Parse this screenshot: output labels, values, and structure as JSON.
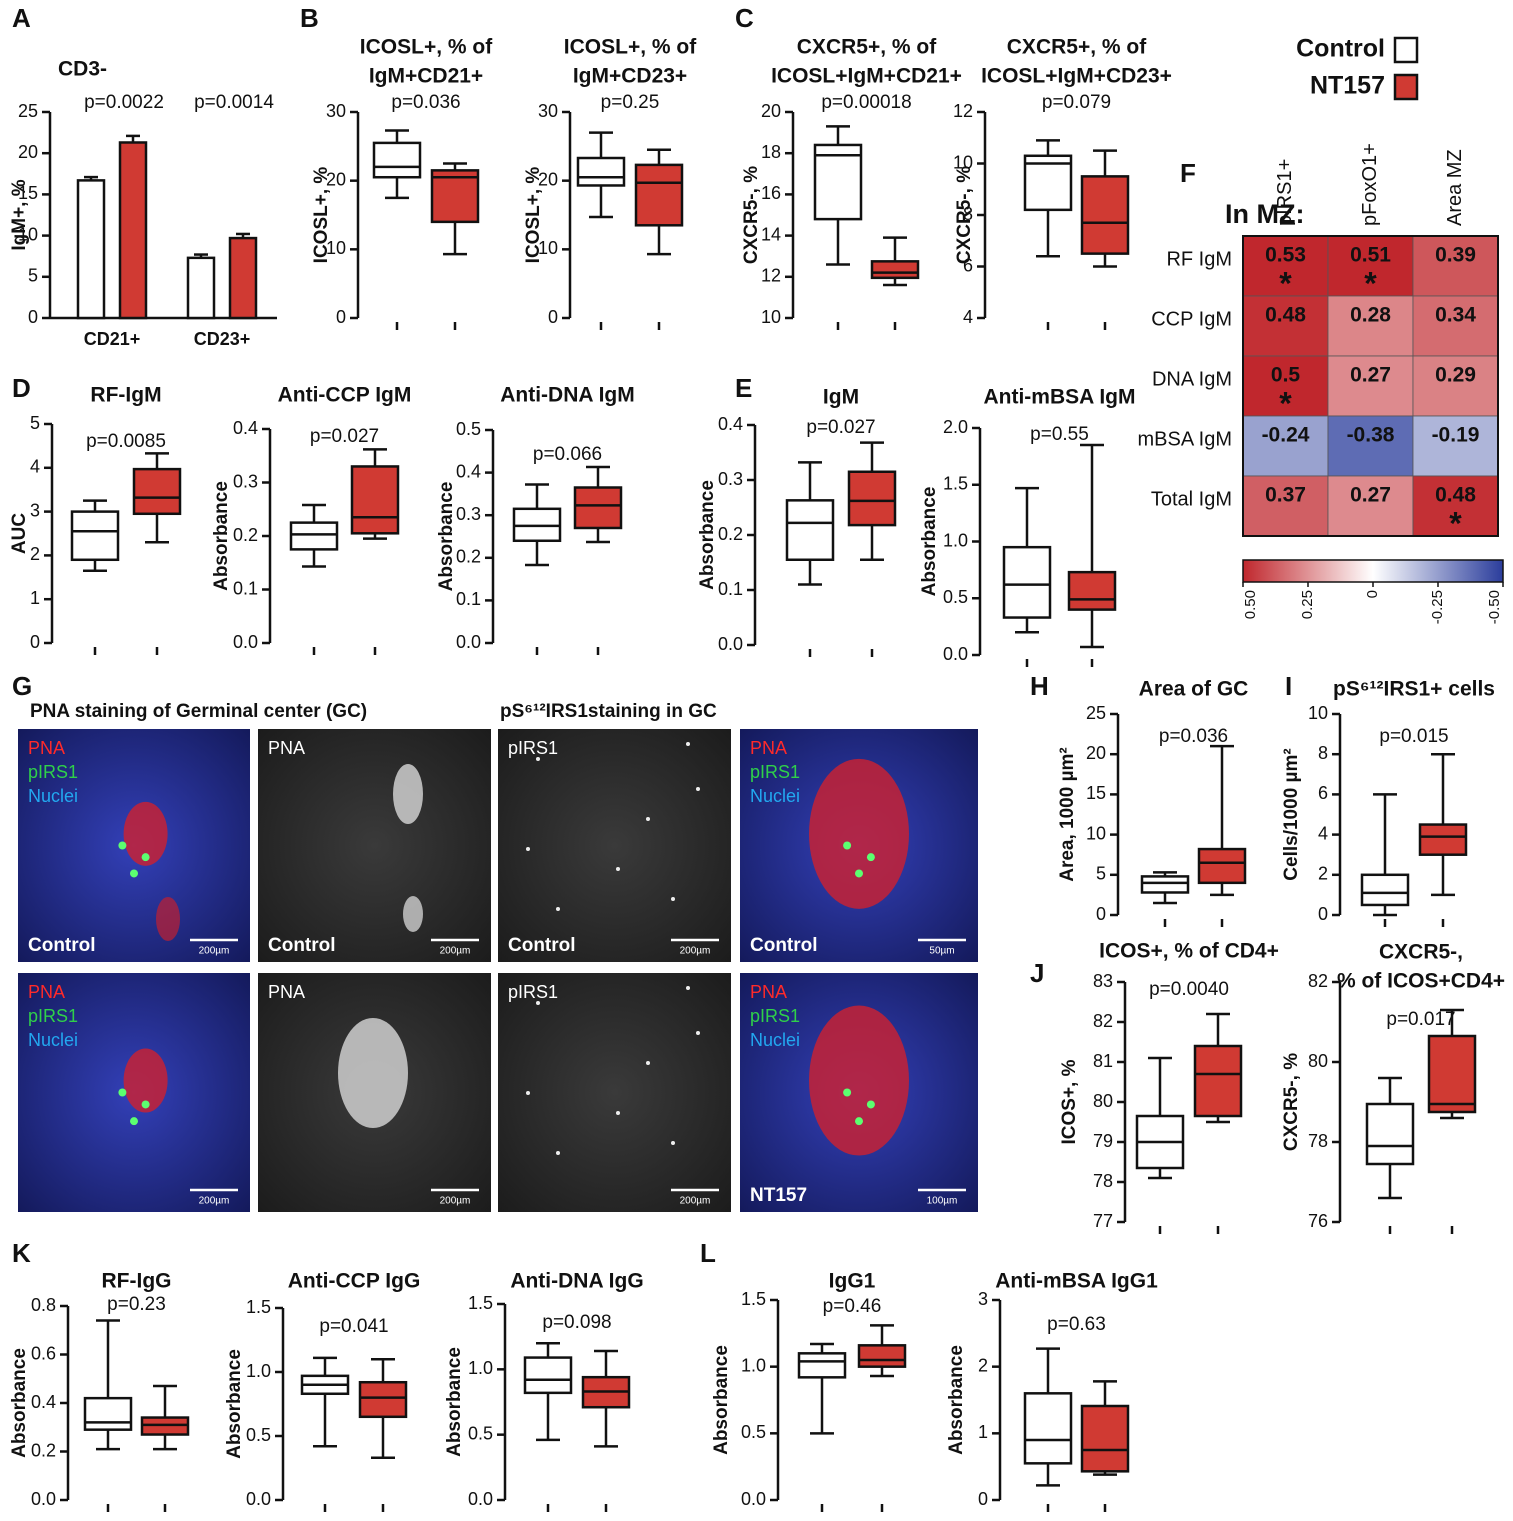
{
  "panel_letters": [
    "A",
    "B",
    "C",
    "D",
    "E",
    "F",
    "G",
    "H",
    "I",
    "J",
    "K",
    "L"
  ],
  "legend": {
    "items": [
      {
        "name": "Control",
        "color": "#ffffff"
      },
      {
        "name": "NT157",
        "color": "#d03a33"
      }
    ]
  },
  "chart_data": [
    {
      "type": "bar",
      "title": [
        "CD3-"
      ],
      "ylabel": "IgM+, %",
      "categories": [
        "CD21+",
        "CD23+"
      ],
      "annotations": [
        "p=0.0022",
        "p=0.0014"
      ],
      "series": [
        {
          "values": [
            16.7,
            7.3
          ],
          "errors": [
            0.4,
            0.4
          ]
        },
        {
          "values": [
            21.3,
            9.7
          ],
          "errors": [
            0.8,
            0.5
          ]
        }
      ],
      "ylim": [
        0,
        25
      ],
      "yticks": [
        0,
        5,
        10,
        15,
        20,
        25
      ]
    },
    {
      "type": "box",
      "title": [
        "ICOSL+, % of",
        "IgM+CD21+"
      ],
      "ylabel": "ICOSL+, %",
      "annotation": "p=0.036",
      "ylim": [
        0,
        30
      ],
      "yticks": [
        0,
        10,
        20,
        30
      ],
      "boxes": [
        [
          17.5,
          20.5,
          22,
          25.5,
          27.3
        ],
        [
          9.3,
          14,
          20.5,
          21.5,
          22.5
        ]
      ]
    },
    {
      "type": "box",
      "title": [
        "ICOSL+, % of",
        "IgM+CD23+"
      ],
      "ylabel": "ICOSL+, %",
      "annotation": "p=0.25",
      "ylim": [
        0,
        30
      ],
      "yticks": [
        0,
        10,
        20,
        30
      ],
      "boxes": [
        [
          14.7,
          19.3,
          20.5,
          23.3,
          27
        ],
        [
          9.3,
          13.5,
          19.7,
          22.3,
          24.5
        ]
      ]
    },
    {
      "type": "box",
      "title": [
        "CXCR5+, % of",
        "ICOSL+IgM+CD21+"
      ],
      "ylabel": "CXCR5-, %",
      "annotation": "p=0.00018",
      "ylim": [
        10,
        20
      ],
      "yticks": [
        10,
        12,
        14,
        16,
        18,
        20
      ],
      "boxes": [
        [
          12.6,
          14.8,
          17.9,
          18.4,
          19.3
        ],
        [
          11.6,
          11.95,
          12.2,
          12.75,
          13.9
        ]
      ]
    },
    {
      "type": "box",
      "title": [
        "CXCR5+, % of",
        "ICOSL+IgM+CD23+"
      ],
      "ylabel": "CXCR5-, %",
      "annotation": "p=0.079",
      "ylim": [
        4,
        12
      ],
      "yticks": [
        4,
        6,
        8,
        10,
        12
      ],
      "boxes": [
        [
          6.4,
          8.2,
          10,
          10.3,
          10.9
        ],
        [
          6,
          6.5,
          7.7,
          9.5,
          10.5
        ]
      ]
    },
    {
      "type": "box",
      "title": [
        "RF-IgM"
      ],
      "ylabel": "AUC",
      "annotation": "p=0.0085",
      "ylim": [
        0,
        5
      ],
      "yticks": [
        0,
        1,
        2,
        3,
        4,
        5
      ],
      "boxes": [
        [
          1.65,
          1.9,
          2.55,
          3.0,
          3.25
        ],
        [
          2.3,
          2.95,
          3.32,
          3.97,
          4.33
        ]
      ]
    },
    {
      "type": "box",
      "title": [
        "Anti-CCP IgM"
      ],
      "ylabel": "Absorbance",
      "annotation": "p=0.027",
      "ylim": [
        0,
        0.4
      ],
      "yticks": [
        {
          "value": 0,
          "label": "0.0"
        },
        0.1,
        0.2,
        0.3,
        0.4
      ],
      "boxes": [
        [
          0.143,
          0.175,
          0.203,
          0.225,
          0.258
        ],
        [
          0.195,
          0.205,
          0.235,
          0.33,
          0.362
        ]
      ]
    },
    {
      "type": "box",
      "title": [
        "Anti-DNA IgM"
      ],
      "ylabel": "Absorbance",
      "annotation": "p=0.066",
      "ylim": [
        0,
        0.5
      ],
      "yticks": [
        {
          "value": 0,
          "label": "0.0"
        },
        0.1,
        0.2,
        0.3,
        0.4,
        0.5
      ],
      "boxes": [
        [
          0.183,
          0.24,
          0.275,
          0.315,
          0.372
        ],
        [
          0.237,
          0.27,
          0.323,
          0.365,
          0.413
        ]
      ]
    },
    {
      "type": "box",
      "title": [
        "IgM"
      ],
      "ylabel": "Absorbance",
      "annotation": "p=0.027",
      "ylim": [
        0,
        0.4
      ],
      "yticks": [
        {
          "value": 0,
          "label": "0.0"
        },
        0.1,
        0.2,
        0.3,
        0.4
      ],
      "boxes": [
        [
          0.11,
          0.155,
          0.222,
          0.263,
          0.332
        ],
        [
          0.155,
          0.218,
          0.262,
          0.315,
          0.368
        ]
      ]
    },
    {
      "type": "box",
      "title": [
        "Anti-mBSA IgM"
      ],
      "ylabel": "Absorbance",
      "annotation": "p=0.55",
      "ylim": [
        0,
        2
      ],
      "yticks": [
        {
          "value": 0,
          "label": "0.0"
        },
        0.5,
        {
          "value": 1,
          "label": "1.0"
        },
        1.5,
        {
          "value": 2,
          "label": "2.0"
        }
      ],
      "boxes": [
        [
          0.2,
          0.33,
          0.62,
          0.95,
          1.47
        ],
        [
          0.07,
          0.4,
          0.49,
          0.73,
          1.85
        ]
      ]
    },
    {
      "type": "box",
      "title": [
        "Area of GC"
      ],
      "ylabel": "Area, 1000 µm²",
      "annotation": "p=0.036",
      "ylim": [
        0,
        25
      ],
      "yticks": [
        0,
        5,
        10,
        15,
        20,
        25
      ],
      "boxes": [
        [
          1.5,
          2.8,
          4,
          4.8,
          5.3
        ],
        [
          2.5,
          4,
          6.5,
          8.2,
          21
        ]
      ]
    },
    {
      "type": "box",
      "title": [
        "pS⁶¹²IRS1+ cells"
      ],
      "ylabel": "Cells/1000 µm²",
      "annotation": "p=0.015",
      "ylim": [
        0,
        10
      ],
      "yticks": [
        0,
        2,
        4,
        6,
        8,
        10
      ],
      "boxes": [
        [
          0,
          0.5,
          1.1,
          2,
          6
        ],
        [
          1,
          3,
          3.9,
          4.5,
          8
        ]
      ]
    },
    {
      "type": "box",
      "title": [
        "ICOS+, % of CD4+"
      ],
      "ylabel": "ICOS+, %",
      "annotation": "p=0.0040",
      "ylim": [
        77,
        83
      ],
      "yticks": [
        77,
        78,
        79,
        80,
        81,
        82,
        83
      ],
      "boxes": [
        [
          78.1,
          78.35,
          79,
          79.65,
          81.1
        ],
        [
          79.5,
          79.65,
          80.7,
          81.4,
          82.2
        ]
      ]
    },
    {
      "type": "box",
      "title": [
        "CXCR5-,",
        "% of ICOS+CD4+"
      ],
      "ylabel": "CXCR5-, %",
      "annotation": "p=0.017",
      "ylim": [
        76,
        82
      ],
      "yticks": [
        76,
        78,
        80,
        82
      ],
      "boxes": [
        [
          76.6,
          77.45,
          77.9,
          78.95,
          79.6
        ],
        [
          78.6,
          78.75,
          78.95,
          80.65,
          81.3
        ]
      ]
    },
    {
      "type": "box",
      "title": [
        "RF-IgG"
      ],
      "ylabel": "Absorbance",
      "annotation": "p=0.23",
      "ylim": [
        0,
        0.8
      ],
      "yticks": [
        {
          "value": 0,
          "label": "0.0"
        },
        0.2,
        0.4,
        0.6,
        0.8
      ],
      "boxes": [
        [
          0.21,
          0.29,
          0.32,
          0.42,
          0.74
        ],
        [
          0.21,
          0.27,
          0.31,
          0.34,
          0.47
        ]
      ]
    },
    {
      "type": "box",
      "title": [
        "Anti-CCP IgG"
      ],
      "ylabel": "Absorbance",
      "annotation": "p=0.041",
      "ylim": [
        0,
        1.5
      ],
      "yticks": [
        {
          "value": 0,
          "label": "0.0"
        },
        0.5,
        {
          "value": 1,
          "label": "1.0"
        },
        1.5
      ],
      "boxes": [
        [
          0.42,
          0.83,
          0.9,
          0.97,
          1.11
        ],
        [
          0.33,
          0.65,
          0.8,
          0.92,
          1.1
        ]
      ]
    },
    {
      "type": "box",
      "title": [
        "Anti-DNA IgG"
      ],
      "ylabel": "Absorbance",
      "annotation": "p=0.098",
      "ylim": [
        0,
        1.5
      ],
      "yticks": [
        {
          "value": 0,
          "label": "0.0"
        },
        0.5,
        {
          "value": 1,
          "label": "1.0"
        },
        1.5
      ],
      "boxes": [
        [
          0.46,
          0.82,
          0.92,
          1.09,
          1.2
        ],
        [
          0.41,
          0.71,
          0.83,
          0.94,
          1.14
        ]
      ]
    },
    {
      "type": "box",
      "title": [
        "IgG1"
      ],
      "ylabel": "Absorbance",
      "annotation": "p=0.46",
      "ylim": [
        0,
        1.5
      ],
      "yticks": [
        {
          "value": 0,
          "label": "0.0"
        },
        0.5,
        {
          "value": 1,
          "label": "1.0"
        },
        1.5
      ],
      "boxes": [
        [
          0.5,
          0.92,
          1.04,
          1.1,
          1.17
        ],
        [
          0.93,
          1.0,
          1.05,
          1.16,
          1.31
        ]
      ]
    },
    {
      "type": "box",
      "title": [
        "Anti-mBSA IgG1"
      ],
      "ylabel": "Absorbance",
      "annotation": "p=0.63",
      "ylim": [
        0,
        3
      ],
      "yticks": [
        0,
        1,
        2,
        3
      ],
      "boxes": [
        [
          0.22,
          0.55,
          0.9,
          1.6,
          2.27
        ],
        [
          0.38,
          0.43,
          0.75,
          1.41,
          1.78
        ]
      ]
    },
    {
      "type": "heatmap",
      "title": "In MZ:",
      "columns": [
        "pIRS1+",
        "pFoxO1+",
        "Area MZ"
      ],
      "rows": [
        "RF IgM",
        "CCP IgM",
        "DNA IgM",
        "mBSA IgM",
        "Total IgM"
      ],
      "values": [
        [
          0.53,
          0.51,
          0.39
        ],
        [
          0.48,
          0.28,
          0.34
        ],
        [
          0.5,
          0.27,
          0.29
        ],
        [
          -0.24,
          -0.38,
          -0.19
        ],
        [
          0.37,
          0.27,
          0.48
        ]
      ],
      "star_label": "*",
      "significant": [
        [
          true,
          true,
          false
        ],
        [
          false,
          false,
          false
        ],
        [
          true,
          false,
          false
        ],
        [
          false,
          false,
          false
        ],
        [
          false,
          false,
          true
        ]
      ],
      "clim": [
        0.5,
        -0.5
      ],
      "colors": [
        "#c0272d",
        "#ffffff",
        "#2b3d9c"
      ],
      "cticks": [
        {
          "value": 0.5,
          "label": "0.50"
        },
        0.25,
        0,
        -0.25,
        {
          "value": -0.5,
          "label": "-0.50"
        }
      ]
    }
  ],
  "micrographs": {
    "headings": [
      "PNA staining  of Germinal center (GC)",
      "pS⁶¹²IRS1staining  in GC"
    ],
    "panels": [
      {
        "labels": [
          "PNA",
          "pIRS1",
          "Nuclei"
        ],
        "caption": "Control",
        "scale": "200µm"
      },
      {
        "labels": [
          "PNA"
        ],
        "caption": "Control",
        "scale": "200µm"
      },
      {
        "labels": [
          "pIRS1"
        ],
        "caption": "Control",
        "scale": "200µm"
      },
      {
        "labels": [
          "PNA",
          "pIRS1",
          "Nuclei"
        ],
        "caption": "Control",
        "scale": "50µm"
      },
      {
        "labels": [
          "PNA",
          "pIRS1",
          "Nuclei"
        ],
        "scale": "200µm"
      },
      {
        "labels": [
          "PNA"
        ],
        "scale": "200µm"
      },
      {
        "labels": [
          "pIRS1"
        ],
        "scale": "200µm"
      },
      {
        "labels": [
          "PNA",
          "pIRS1",
          "Nuclei"
        ],
        "caption": "NT157",
        "scale": "100µm"
      }
    ]
  }
}
